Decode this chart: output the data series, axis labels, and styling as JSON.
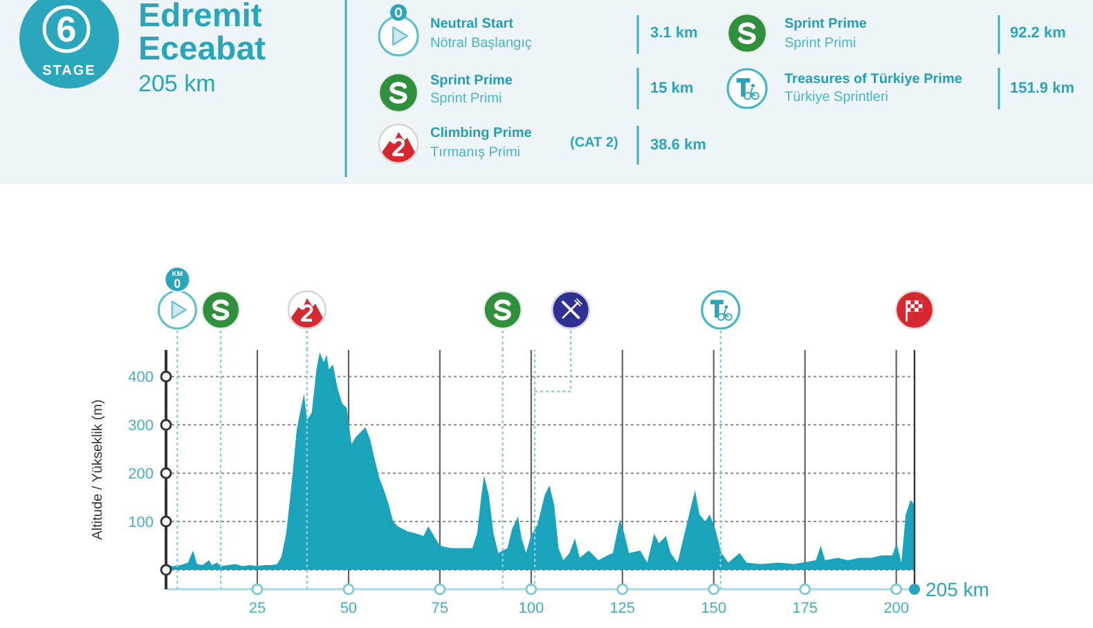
{
  "chart_data": [
    {
      "type": "other",
      "title": "Edremit Eceabat",
      "subtitle": "205 km",
      "annotations": [
        "6",
        "STAGE",
        "Neutral Start",
        "Nötral Başlangıç",
        "3.1 km",
        "Sprint Prime",
        "Sprint Primi",
        "15 km",
        "Climbing Prime",
        "Tırmanış Primi",
        "(CAT 2)",
        "38.6 km",
        "Sprint Prime",
        "Sprint Primi",
        "92.2 km",
        "Treasures of Türkiye Prime",
        "Türkiye Sprintleri",
        "151.9 km"
      ]
    },
    {
      "type": "area",
      "ylabel": "Altitude / Yükseklik (m)",
      "color": "#1aa4bb",
      "x": [
        0,
        2,
        4,
        6,
        7.4,
        8.5,
        10,
        11.8,
        12.5,
        14,
        15,
        17,
        19,
        21,
        23,
        25,
        27,
        29,
        30.4,
        31.6,
        32.9,
        34,
        34.8,
        35.8,
        36.7,
        37.8,
        38.6,
        39.9,
        41.2,
        42.1,
        43.2,
        44,
        44.6,
        45.7,
        47,
        48.2,
        49.5,
        50.8,
        52,
        53.3,
        54.6,
        55.9,
        57.1,
        58.4,
        59.7,
        61,
        62.2,
        63.5,
        66,
        68.6,
        70.5,
        71.8,
        73,
        75,
        78,
        81.4,
        83.9,
        85.2,
        86.3,
        87.1,
        88.4,
        89.7,
        91,
        93.5,
        94.8,
        96.4,
        97.4,
        98.6,
        99.9,
        101.8,
        103.7,
        105,
        106.3,
        107.5,
        108.8,
        110.5,
        112,
        113.3,
        115.8,
        118.4,
        120.9,
        122.4,
        124.3,
        125.5,
        126.8,
        129.9,
        131.8,
        133.7,
        135,
        136.9,
        138.2,
        140.1,
        142,
        143.9,
        144.9,
        146.1,
        147.7,
        148.9,
        150.4,
        152.1,
        154,
        157.1,
        159,
        163,
        167.9,
        172,
        174.2,
        178,
        179.3,
        180.5,
        184,
        186.8,
        190,
        193.2,
        196,
        198.9,
        200.1,
        201.4,
        202.6,
        203.9,
        205
      ],
      "values": [
        10,
        8,
        10,
        15,
        40,
        12,
        10,
        20,
        10,
        15,
        8,
        10,
        12,
        8,
        10,
        8,
        10,
        10,
        12,
        27,
        75,
        150,
        210,
        290,
        325,
        365,
        310,
        325,
        415,
        450,
        430,
        445,
        415,
        425,
        375,
        345,
        335,
        260,
        275,
        285,
        295,
        270,
        230,
        190,
        165,
        135,
        100,
        90,
        80,
        75,
        70,
        90,
        75,
        50,
        45,
        45,
        45,
        75,
        150,
        195,
        155,
        75,
        35,
        45,
        85,
        110,
        65,
        35,
        70,
        95,
        155,
        175,
        135,
        45,
        20,
        35,
        65,
        25,
        40,
        20,
        30,
        35,
        105,
        75,
        35,
        40,
        15,
        75,
        55,
        70,
        35,
        15,
        75,
        135,
        165,
        115,
        100,
        115,
        85,
        35,
        15,
        35,
        15,
        12,
        15,
        12,
        15,
        20,
        50,
        20,
        25,
        20,
        25,
        25,
        30,
        30,
        55,
        15,
        115,
        145,
        135
      ],
      "xlim": [
        0,
        205
      ],
      "xticks": [
        25,
        50,
        75,
        100,
        125,
        150,
        175,
        200
      ],
      "ylim": [
        0,
        455
      ],
      "yticks": [
        {
          "value": 0,
          "label": null
        },
        100,
        200,
        300,
        400
      ],
      "grid": true,
      "ref_lines": [
        {
          "axis": "x",
          "value": 3.1,
          "label": "KM 0",
          "color": "#8ccbdb",
          "line_style": "dotted"
        },
        {
          "axis": "x",
          "value": 15,
          "color": "#8ccbdb",
          "line_style": "dotted"
        },
        {
          "axis": "x",
          "value": 38.6,
          "color": "#8ccbdb",
          "line_style": "dotted"
        },
        {
          "axis": "x",
          "value": 92.2,
          "color": "#8ccbdb",
          "line_style": "dotted"
        },
        {
          "axis": "x",
          "value": 101,
          "color": "#8ccbdb",
          "line_style": "dotted"
        },
        {
          "axis": "x",
          "value": 151.9,
          "color": "#8ccbdb",
          "line_style": "dotted"
        },
        {
          "axis": "x",
          "value": 205,
          "color": "#333333",
          "line_style": "solid"
        }
      ],
      "annotations": [
        "205 km"
      ]
    }
  ]
}
